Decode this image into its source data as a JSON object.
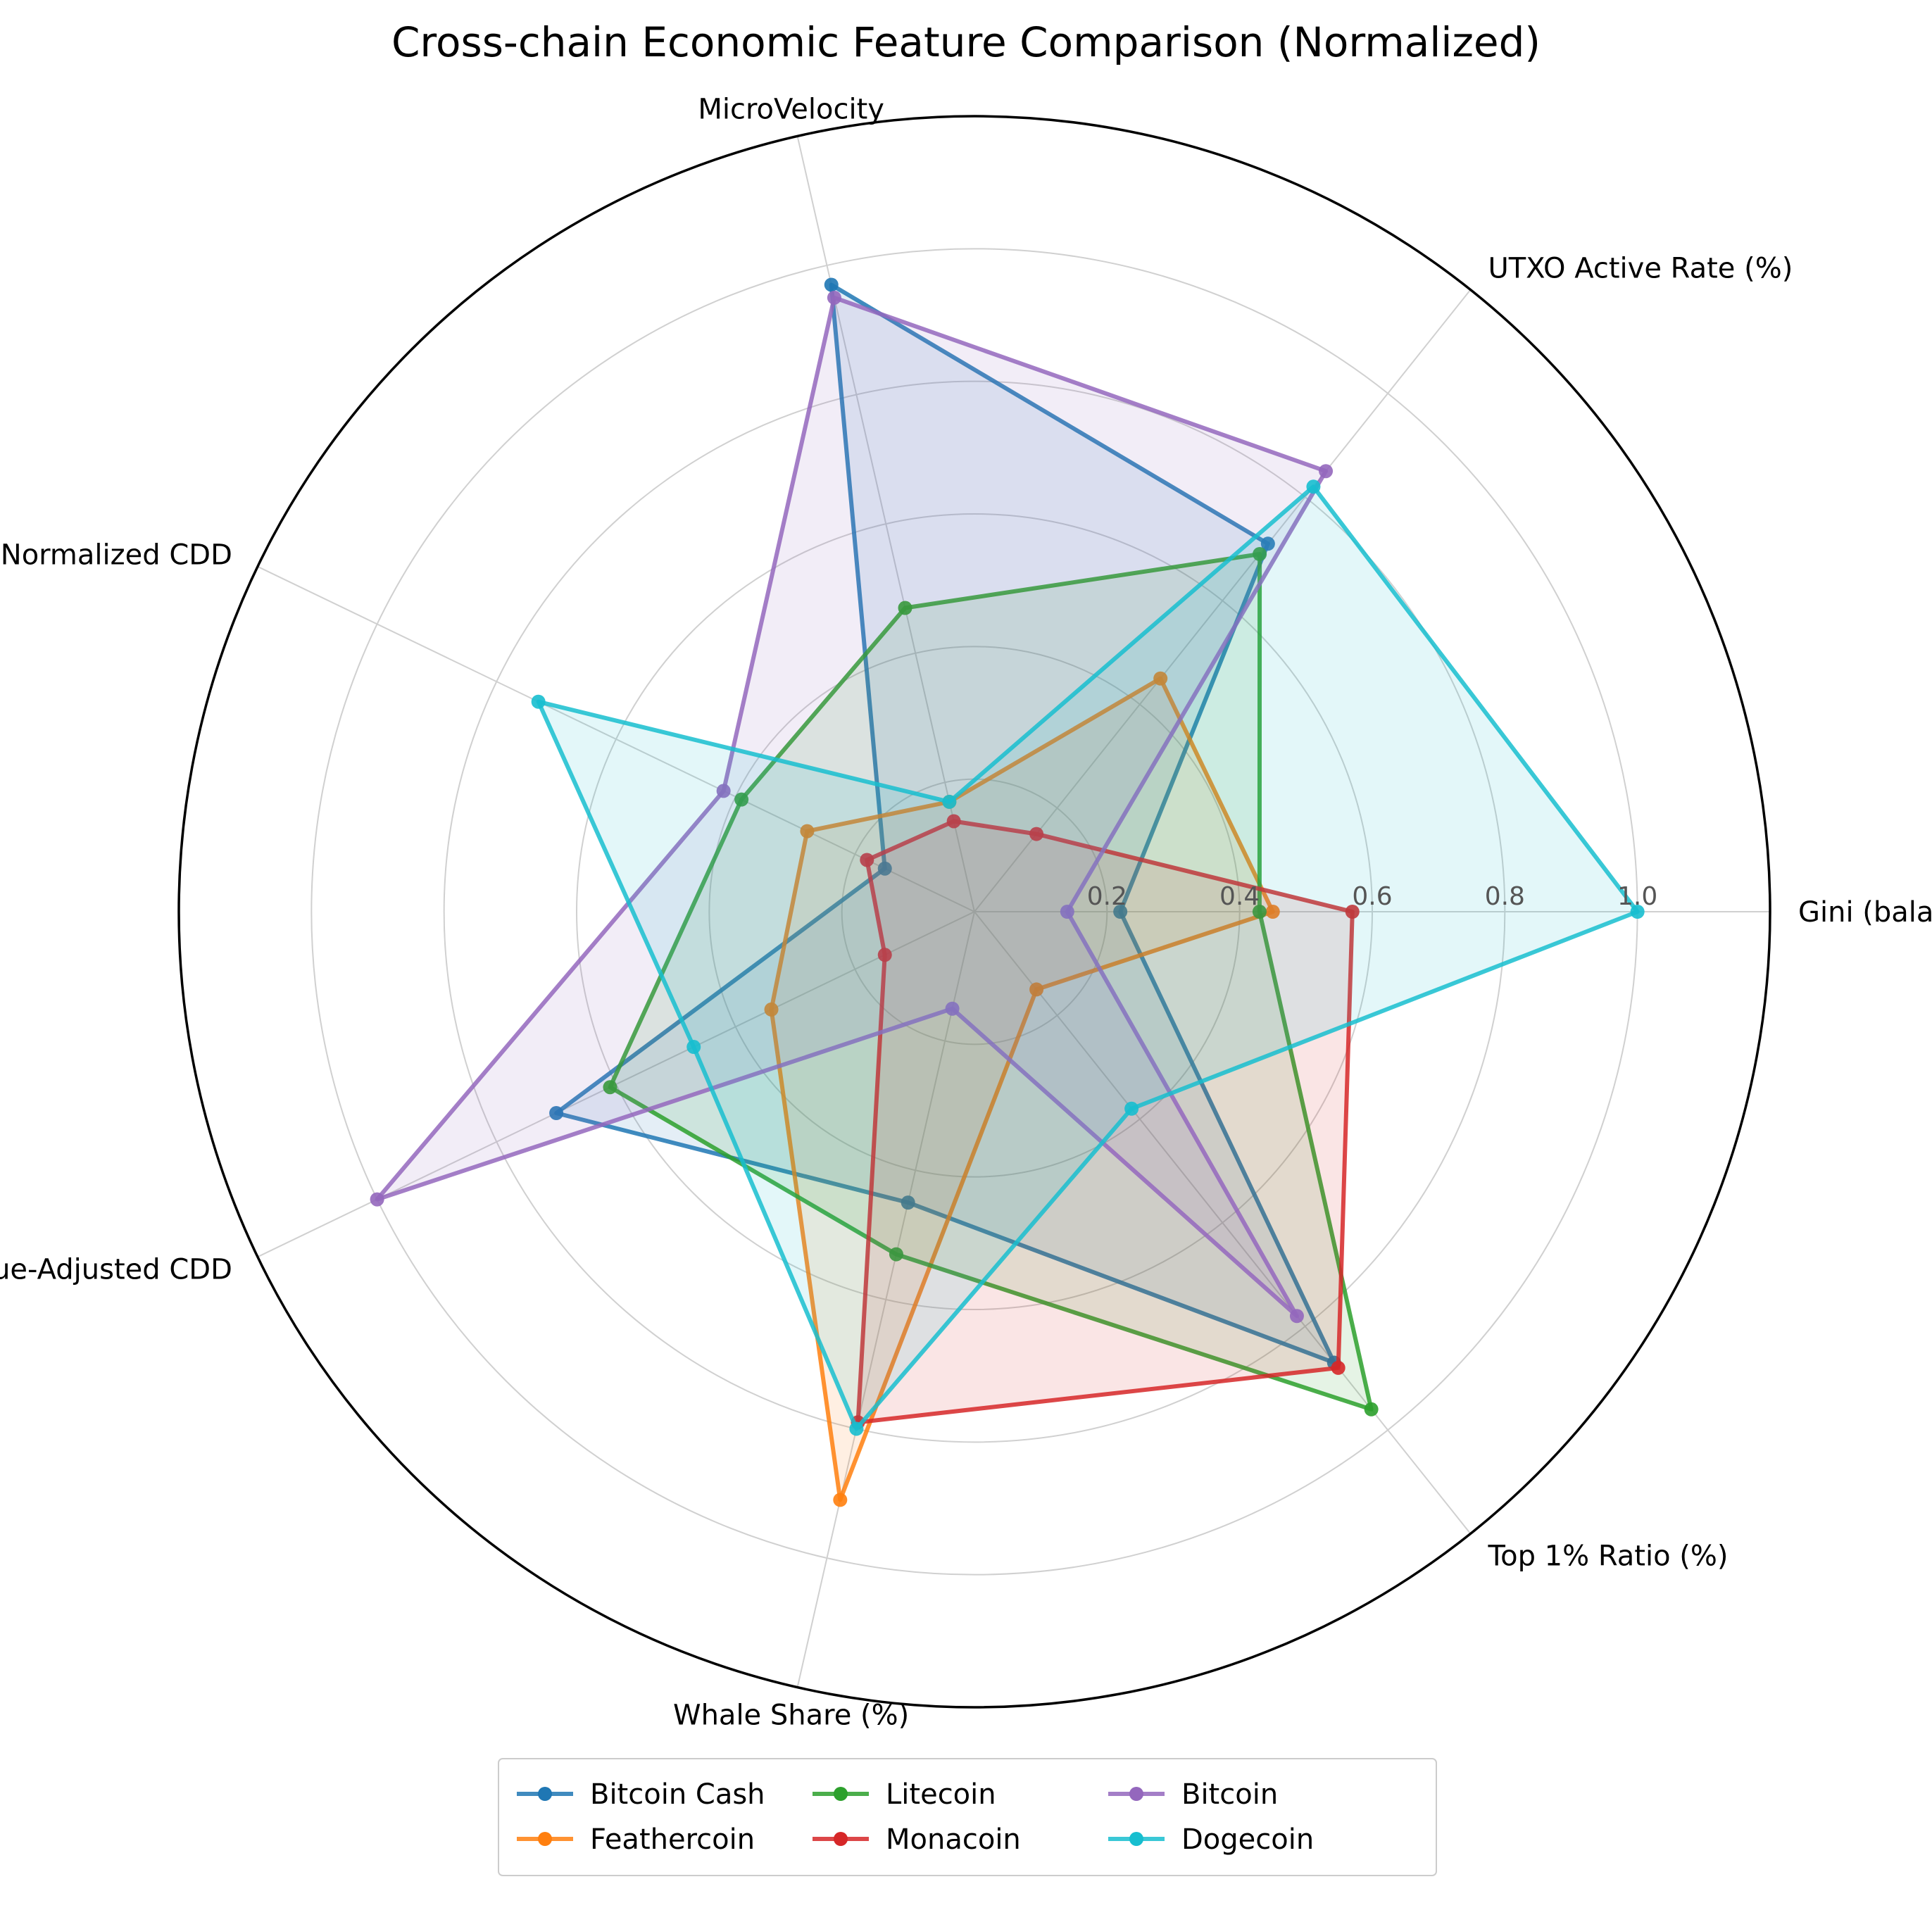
{
  "chart_data": {
    "type": "radar",
    "title": "Cross-chain Economic Feature Comparison (Normalized)",
    "axes": [
      "Gini (balance)",
      "UTXO Active Rate (%)",
      "MicroVelocity",
      "Supply-Normalized CDD",
      "Value-Adjusted CDD",
      "Whale Share (%)",
      "Top 1% Ratio (%)"
    ],
    "radial_ticks": [
      "0.2",
      "0.4",
      "0.6",
      "0.8",
      "1.0"
    ],
    "radial_tick_values": [
      0.2,
      0.4,
      0.6,
      0.8,
      1.0
    ],
    "rlim": [
      0,
      1.2
    ],
    "grid": true,
    "legend_position": "bottom-center",
    "series": [
      {
        "name": "Bitcoin Cash",
        "color": "#1f77b4",
        "values": [
          0.22,
          0.71,
          0.97,
          0.15,
          0.7,
          0.45,
          0.87
        ]
      },
      {
        "name": "Feathercoin",
        "color": "#ff7f0e",
        "values": [
          0.45,
          0.45,
          0.17,
          0.28,
          0.34,
          0.91,
          0.15
        ]
      },
      {
        "name": "Litecoin",
        "color": "#2ca02c",
        "values": [
          0.43,
          0.69,
          0.47,
          0.39,
          0.61,
          0.53,
          0.96
        ]
      },
      {
        "name": "Monacoin",
        "color": "#d62728",
        "values": [
          0.57,
          0.15,
          0.14,
          0.18,
          0.15,
          0.79,
          0.88
        ]
      },
      {
        "name": "Bitcoin",
        "color": "#9467bd",
        "values": [
          0.14,
          0.85,
          0.95,
          0.42,
          1.0,
          0.15,
          0.78
        ]
      },
      {
        "name": "Dogecoin",
        "color": "#17becf",
        "values": [
          1.0,
          0.82,
          0.17,
          0.73,
          0.47,
          0.8,
          0.38
        ]
      }
    ]
  }
}
